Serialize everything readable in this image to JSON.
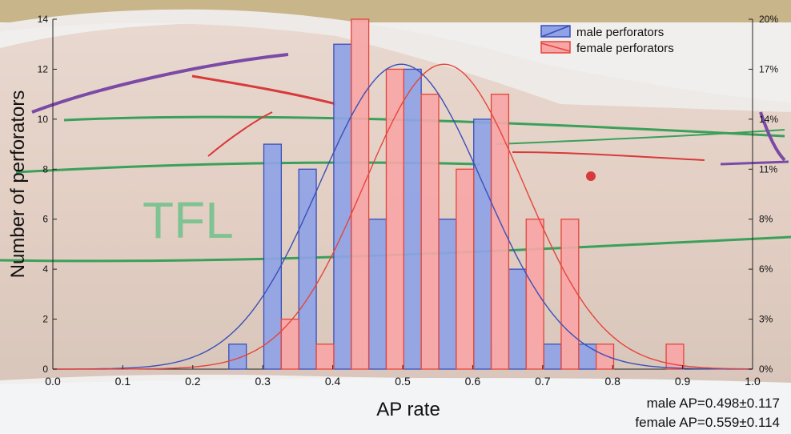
{
  "chart_data": {
    "type": "bar",
    "xlabel": "AP rate",
    "ylabel": "Number of perforators",
    "xlim": [
      0.0,
      1.0
    ],
    "ylim": [
      0,
      14
    ],
    "x_ticks": [
      "0.0",
      "0.1",
      "0.2",
      "0.3",
      "0.4",
      "0.5",
      "0.6",
      "0.7",
      "0.8",
      "0.9",
      "1.0"
    ],
    "y_ticks": [
      "0",
      "2",
      "4",
      "6",
      "8",
      "10",
      "12",
      "14"
    ],
    "y2_ticks": [
      "0%",
      "3%",
      "6%",
      "8%",
      "11%",
      "14%",
      "17%",
      "20%"
    ],
    "legend_position": "top-right",
    "series": [
      {
        "name": "male perforators",
        "color": "#3a4fb8",
        "fill": "#8fa3e6",
        "bins": [
          {
            "x": 0.264,
            "value": 1
          },
          {
            "x": 0.314,
            "value": 9
          },
          {
            "x": 0.364,
            "value": 8
          },
          {
            "x": 0.414,
            "value": 13
          },
          {
            "x": 0.464,
            "value": 6
          },
          {
            "x": 0.514,
            "value": 12
          },
          {
            "x": 0.564,
            "value": 6
          },
          {
            "x": 0.614,
            "value": 10
          },
          {
            "x": 0.664,
            "value": 4
          },
          {
            "x": 0.714,
            "value": 1
          },
          {
            "x": 0.764,
            "value": 1
          }
        ],
        "mean": 0.498,
        "sd": 0.117
      },
      {
        "name": "female perforators",
        "color": "#e6443a",
        "fill": "#f7a6a6",
        "bins": [
          {
            "x": 0.339,
            "value": 2
          },
          {
            "x": 0.389,
            "value": 1
          },
          {
            "x": 0.439,
            "value": 14
          },
          {
            "x": 0.489,
            "value": 12
          },
          {
            "x": 0.539,
            "value": 11
          },
          {
            "x": 0.589,
            "value": 8
          },
          {
            "x": 0.639,
            "value": 11
          },
          {
            "x": 0.689,
            "value": 6
          },
          {
            "x": 0.739,
            "value": 6
          },
          {
            "x": 0.789,
            "value": 1
          },
          {
            "x": 0.889,
            "value": 1
          }
        ],
        "mean": 0.559,
        "sd": 0.114
      }
    ],
    "bin_width": 0.025,
    "curve_scale": 12.2,
    "annotations": {
      "male_stat": "male AP=0.498±0.117",
      "female_stat": "female AP=0.559±0.114",
      "photo_text": "TFL"
    }
  }
}
